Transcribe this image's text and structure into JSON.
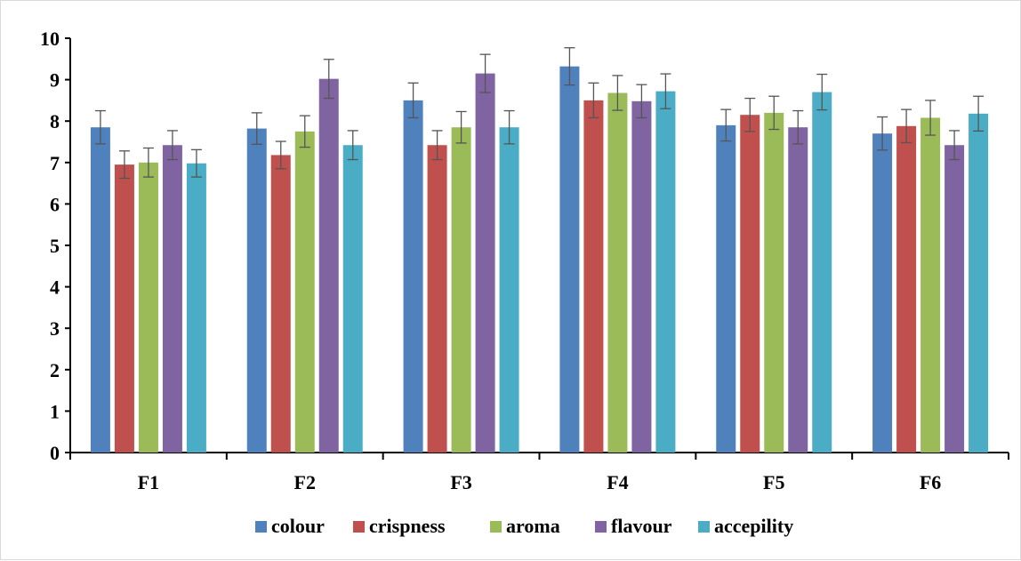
{
  "chart_data": {
    "type": "bar",
    "title": "",
    "xlabel": "",
    "ylabel": "",
    "ylim": [
      0,
      10
    ],
    "yticks": [
      0,
      1,
      2,
      3,
      4,
      5,
      6,
      7,
      8,
      9,
      10
    ],
    "grid": false,
    "legend_position": "bottom",
    "categories": [
      "F1",
      "F2",
      "F3",
      "F4",
      "F5",
      "F6"
    ],
    "series": [
      {
        "name": "colour",
        "color": "#4f81bd",
        "values": [
          7.85,
          7.82,
          8.5,
          9.32,
          7.9,
          7.7
        ],
        "errors": [
          0.4,
          0.38,
          0.42,
          0.45,
          0.38,
          0.4
        ]
      },
      {
        "name": "crispness",
        "color": "#c0504d",
        "values": [
          6.95,
          7.18,
          7.42,
          8.5,
          8.15,
          7.88
        ],
        "errors": [
          0.33,
          0.33,
          0.35,
          0.42,
          0.4,
          0.4
        ]
      },
      {
        "name": "aroma",
        "color": "#9bbb59",
        "values": [
          7.0,
          7.75,
          7.85,
          8.68,
          8.2,
          8.08
        ],
        "errors": [
          0.35,
          0.38,
          0.38,
          0.42,
          0.4,
          0.42
        ]
      },
      {
        "name": "flavour",
        "color": "#8064a2",
        "values": [
          7.42,
          9.02,
          9.15,
          8.48,
          7.85,
          7.42
        ],
        "errors": [
          0.35,
          0.47,
          0.46,
          0.4,
          0.4,
          0.35
        ]
      },
      {
        "name": "accepility",
        "color": "#4bacc6",
        "values": [
          6.98,
          7.42,
          7.85,
          8.72,
          8.7,
          8.18
        ],
        "errors": [
          0.33,
          0.35,
          0.4,
          0.42,
          0.43,
          0.42
        ]
      }
    ]
  }
}
